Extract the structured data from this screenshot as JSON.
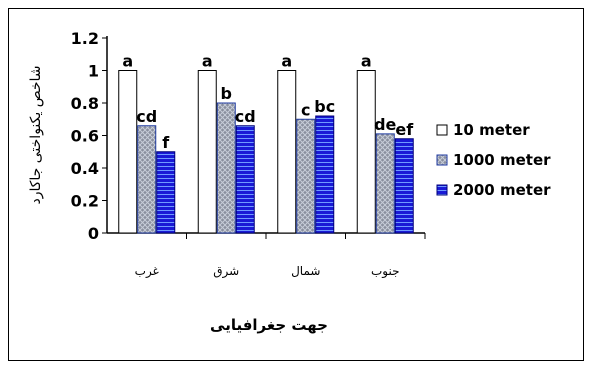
{
  "chart_data": {
    "type": "bar",
    "categories": [
      "غرب",
      "شرق",
      "شمال",
      "جنوب"
    ],
    "series": [
      {
        "name": "10 meter",
        "values": [
          1.0,
          1.0,
          1.0,
          1.0
        ],
        "letters": [
          "a",
          "a",
          "a",
          "a"
        ]
      },
      {
        "name": "1000 meter",
        "values": [
          0.66,
          0.8,
          0.7,
          0.61
        ],
        "letters": [
          "cd",
          "b",
          "c",
          "de"
        ]
      },
      {
        "name": "2000 meter",
        "values": [
          0.5,
          0.66,
          0.72,
          0.58
        ],
        "letters": [
          "f",
          "cd",
          "bc",
          "ef"
        ]
      }
    ],
    "xlabel": "جهت جغرافیایی",
    "ylabel": "شاخص یکنواختی جاکارد",
    "ylim": [
      0,
      1.2
    ],
    "yticks": [
      "0",
      "0.2",
      "0.4",
      "0.6",
      "0.8",
      "1",
      "1.2"
    ],
    "grid": false,
    "legend_position": "right",
    "series_styles": [
      {
        "fill": "#ffffff",
        "stroke": "#000000",
        "pattern": "none"
      },
      {
        "fill": "#8a8f9e",
        "stroke": "#1f3aa0",
        "pattern": "crosshatch"
      },
      {
        "fill": "#1a1ad6",
        "stroke": "#00007a",
        "pattern": "horizontal-stripes"
      }
    ]
  }
}
